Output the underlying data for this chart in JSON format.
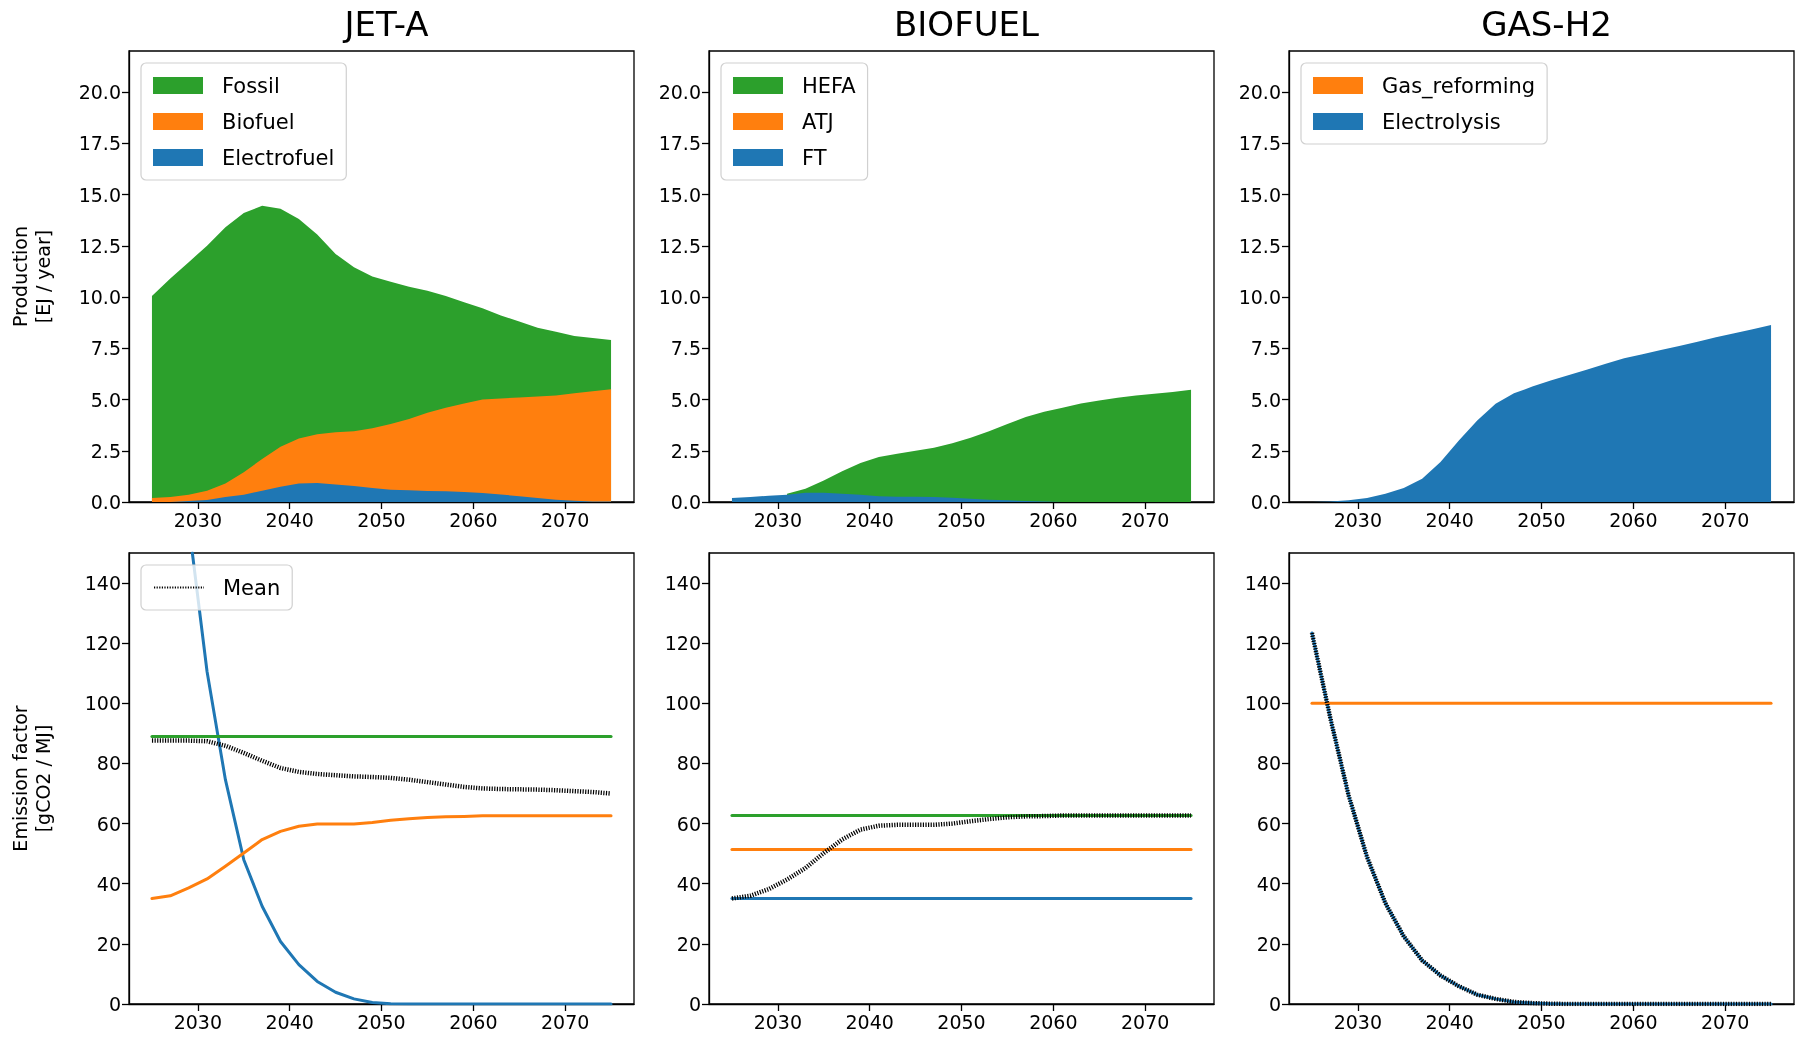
{
  "chart_data": [
    {
      "type": "area",
      "title": "JET-A",
      "ylabel": "Production\n[EJ / year]",
      "stacked": true,
      "legend": "top left",
      "x": [
        2025,
        2027,
        2029,
        2031,
        2033,
        2035,
        2037,
        2039,
        2041,
        2043,
        2045,
        2047,
        2049,
        2051,
        2053,
        2055,
        2057,
        2059,
        2061,
        2063,
        2065,
        2067,
        2069,
        2071,
        2073,
        2075
      ],
      "xlim": [
        2022.5,
        2077.5
      ],
      "xticks": [
        2030,
        2040,
        2050,
        2060,
        2070
      ],
      "ylim": [
        0,
        22
      ],
      "yticks": [
        {
          "value": 0,
          "label": "0.0"
        },
        2.5,
        {
          "value": 5,
          "label": "5.0"
        },
        7.5,
        {
          "value": 10,
          "label": "10.0"
        },
        12.5,
        {
          "value": 15,
          "label": "15.0"
        },
        17.5,
        {
          "value": 20,
          "label": "20.0"
        }
      ],
      "series": [
        {
          "name": "Electrofuel",
          "color": "#1f77b4",
          "values": [
            0,
            0,
            0.05,
            0.1,
            0.25,
            0.35,
            0.55,
            0.75,
            0.9,
            0.93,
            0.85,
            0.78,
            0.68,
            0.6,
            0.57,
            0.54,
            0.52,
            0.49,
            0.44,
            0.37,
            0.28,
            0.2,
            0.11,
            0.06,
            0.03,
            0.02
          ]
        },
        {
          "name": "Biofuel",
          "color": "#ff7f0e",
          "values": [
            0.2,
            0.25,
            0.3,
            0.45,
            0.65,
            1.1,
            1.55,
            1.95,
            2.2,
            2.37,
            2.55,
            2.67,
            2.92,
            3.2,
            3.48,
            3.81,
            4.08,
            4.31,
            4.56,
            4.68,
            4.82,
            4.95,
            5.09,
            5.24,
            5.37,
            5.48
          ]
        },
        {
          "name": "Fossil",
          "color": "#2ca02c",
          "values": [
            9.85,
            10.65,
            11.35,
            11.95,
            12.5,
            12.65,
            12.35,
            11.6,
            10.7,
            9.75,
            8.7,
            8.0,
            7.4,
            6.95,
            6.45,
            5.95,
            5.45,
            4.95,
            4.45,
            4.05,
            3.7,
            3.35,
            3.1,
            2.8,
            2.6,
            2.4
          ]
        }
      ]
    },
    {
      "type": "area",
      "title": "BIOFUEL",
      "stacked": true,
      "legend": "top left",
      "x": [
        2025,
        2027,
        2029,
        2031,
        2033,
        2035,
        2037,
        2039,
        2041,
        2043,
        2045,
        2047,
        2049,
        2051,
        2053,
        2055,
        2057,
        2059,
        2061,
        2063,
        2065,
        2067,
        2069,
        2071,
        2073,
        2075
      ],
      "xlim": [
        2022.5,
        2077.5
      ],
      "xticks": [
        2030,
        2040,
        2050,
        2060,
        2070
      ],
      "ylim": [
        0,
        22
      ],
      "yticks": [
        {
          "value": 0,
          "label": "0.0"
        },
        2.5,
        {
          "value": 5,
          "label": "5.0"
        },
        7.5,
        {
          "value": 10,
          "label": "10.0"
        },
        12.5,
        {
          "value": 15,
          "label": "15.0"
        },
        17.5,
        {
          "value": 20,
          "label": "20.0"
        }
      ],
      "series": [
        {
          "name": "FT",
          "color": "#1f77b4",
          "values": [
            0.2,
            0.25,
            0.3,
            0.35,
            0.45,
            0.45,
            0.4,
            0.35,
            0.28,
            0.26,
            0.26,
            0.25,
            0.21,
            0.16,
            0.11,
            0.08,
            0.05,
            0.02,
            0,
            0,
            0,
            0,
            0,
            0,
            0,
            0
          ]
        },
        {
          "name": "ATJ",
          "color": "#ff7f0e",
          "values": [
            null,
            null,
            null,
            null,
            null,
            null,
            null,
            null,
            null,
            null,
            null,
            null,
            null,
            null,
            null,
            null,
            null,
            null,
            null,
            null,
            null,
            null,
            null,
            null,
            null,
            null
          ]
        },
        {
          "name": "HEFA",
          "color": "#2ca02c",
          "values": [
            null,
            null,
            null,
            0.05,
            0.2,
            0.6,
            1.1,
            1.55,
            1.92,
            2.09,
            2.24,
            2.4,
            2.66,
            2.97,
            3.34,
            3.72,
            4.1,
            4.38,
            4.6,
            4.8,
            4.95,
            5.08,
            5.2,
            5.28,
            5.36,
            5.47
          ]
        }
      ]
    },
    {
      "type": "area",
      "title": "GAS-H2",
      "stacked": true,
      "legend": "top left",
      "x": [
        2025,
        2027,
        2029,
        2031,
        2033,
        2035,
        2037,
        2039,
        2041,
        2043,
        2045,
        2047,
        2049,
        2051,
        2053,
        2055,
        2057,
        2059,
        2061,
        2063,
        2065,
        2067,
        2069,
        2071,
        2073,
        2075
      ],
      "xlim": [
        2022.5,
        2077.5
      ],
      "xticks": [
        2030,
        2040,
        2050,
        2060,
        2070
      ],
      "ylim": [
        0,
        22
      ],
      "yticks": [
        {
          "value": 0,
          "label": "0.0"
        },
        2.5,
        {
          "value": 5,
          "label": "5.0"
        },
        7.5,
        {
          "value": 10,
          "label": "10.0"
        },
        12.5,
        {
          "value": 15,
          "label": "15.0"
        },
        17.5,
        {
          "value": 20,
          "label": "20.0"
        }
      ],
      "series": [
        {
          "name": "Electrolysis",
          "color": "#1f77b4",
          "values": [
            0,
            0.02,
            0.08,
            0.2,
            0.4,
            0.68,
            1.14,
            1.95,
            3.0,
            3.98,
            4.79,
            5.3,
            5.63,
            5.93,
            6.2,
            6.46,
            6.74,
            7.01,
            7.21,
            7.42,
            7.61,
            7.82,
            8.04,
            8.23,
            8.43,
            8.64
          ]
        },
        {
          "name": "Gas_reforming",
          "color": "#ff7f0e",
          "values": [
            null,
            null,
            null,
            null,
            null,
            null,
            null,
            null,
            null,
            null,
            null,
            null,
            null,
            null,
            null,
            null,
            null,
            null,
            null,
            null,
            null,
            null,
            null,
            null,
            null,
            null
          ]
        }
      ]
    },
    {
      "type": "line",
      "ylabel": "Emission factor\n[gCO2 / MJ]",
      "legend": "top left",
      "x": [
        2025,
        2027,
        2029,
        2031,
        2033,
        2035,
        2037,
        2039,
        2041,
        2043,
        2045,
        2047,
        2049,
        2051,
        2053,
        2055,
        2057,
        2059,
        2061,
        2063,
        2065,
        2067,
        2069,
        2071,
        2073,
        2075
      ],
      "xlim": [
        2022.5,
        2077.5
      ],
      "xticks": [
        2030,
        2040,
        2050,
        2060,
        2070
      ],
      "ylim": [
        0,
        150
      ],
      "yticks": [
        0,
        20,
        40,
        60,
        80,
        100,
        120,
        140
      ],
      "series": [
        {
          "color": "#2ca02c",
          "values": [
            89,
            89,
            89,
            89,
            89,
            89,
            89,
            89,
            89,
            89,
            89,
            89,
            89,
            89,
            89,
            89,
            89,
            89,
            89,
            89,
            89,
            89,
            89,
            89,
            89,
            89
          ]
        },
        {
          "color": "#ff7f0e",
          "values": [
            35.1,
            36,
            38.6,
            41.6,
            45.8,
            50.2,
            54.7,
            57.4,
            59.1,
            59.9,
            59.9,
            59.9,
            60.4,
            61.1,
            61.6,
            62,
            62.3,
            62.4,
            62.6,
            62.6,
            62.6,
            62.6,
            62.6,
            62.6,
            62.6,
            62.6
          ]
        },
        {
          "color": "#1f77b4",
          "x": [
            2029.4,
            2031,
            2033,
            2035,
            2037,
            2039,
            2041,
            2043,
            2045,
            2047,
            2049,
            2051,
            2053,
            2055,
            2057,
            2059,
            2061,
            2063,
            2065,
            2067,
            2069,
            2071,
            2073,
            2075
          ],
          "values": [
            150,
            110.6,
            74.6,
            48,
            32.5,
            20.8,
            13.1,
            7.5,
            3.9,
            1.7,
            0.5,
            0.1,
            0,
            0,
            0,
            0,
            0,
            0,
            0,
            0,
            0,
            0,
            0,
            0
          ]
        },
        {
          "name": "Mean",
          "color": "#000000",
          "line_style": "dotted",
          "values": [
            87.6,
            87.6,
            87.6,
            87.4,
            85.9,
            83.5,
            80.9,
            78.5,
            77.2,
            76.5,
            76.1,
            75.7,
            75.5,
            75.2,
            74.6,
            73.8,
            73,
            72.2,
            71.7,
            71.5,
            71.4,
            71.3,
            71.1,
            70.8,
            70.5,
            70
          ]
        }
      ]
    },
    {
      "type": "line",
      "x": [
        2025,
        2027,
        2029,
        2031,
        2033,
        2035,
        2037,
        2039,
        2041,
        2043,
        2045,
        2047,
        2049,
        2051,
        2053,
        2055,
        2057,
        2059,
        2061,
        2063,
        2065,
        2067,
        2069,
        2071,
        2073,
        2075
      ],
      "xlim": [
        2022.5,
        2077.5
      ],
      "xticks": [
        2030,
        2040,
        2050,
        2060,
        2070
      ],
      "ylim": [
        0,
        150
      ],
      "yticks": [
        0,
        20,
        40,
        60,
        80,
        100,
        120,
        140
      ],
      "series": [
        {
          "color": "#2ca02c",
          "values": [
            62.7,
            62.7,
            62.7,
            62.7,
            62.7,
            62.7,
            62.7,
            62.7,
            62.7,
            62.7,
            62.7,
            62.7,
            62.7,
            62.7,
            62.7,
            62.7,
            62.7,
            62.7,
            62.7,
            62.7,
            62.7,
            62.7,
            62.7,
            62.7,
            62.7,
            62.7
          ]
        },
        {
          "color": "#ff7f0e",
          "values": [
            51.4,
            51.4,
            51.4,
            51.4,
            51.4,
            51.4,
            51.4,
            51.4,
            51.4,
            51.4,
            51.4,
            51.4,
            51.4,
            51.4,
            51.4,
            51.4,
            51.4,
            51.4,
            51.4,
            51.4,
            51.4,
            51.4,
            51.4,
            51.4,
            51.4,
            51.4
          ]
        },
        {
          "color": "#1f77b4",
          "values": [
            35.1,
            35.1,
            35.1,
            35.1,
            35.1,
            35.1,
            35.1,
            35.1,
            35.1,
            35.1,
            35.1,
            35.1,
            35.1,
            35.1,
            35.1,
            35.1,
            35.1,
            35.1,
            35.1,
            35.1,
            35.1,
            35.1,
            35.1,
            35.1,
            35.1,
            35.1
          ]
        },
        {
          "color": "#000000",
          "line_style": "dotted",
          "values": [
            35.1,
            36,
            38.2,
            41.4,
            45.2,
            50.2,
            54.7,
            58,
            59.3,
            59.6,
            59.6,
            59.6,
            60,
            60.8,
            61.5,
            62.1,
            62.4,
            62.5,
            62.7,
            62.7,
            62.7,
            62.7,
            62.7,
            62.7,
            62.7,
            62.7
          ]
        }
      ]
    },
    {
      "type": "line",
      "x": [
        2025,
        2027,
        2029,
        2031,
        2033,
        2035,
        2037,
        2039,
        2041,
        2043,
        2045,
        2047,
        2049,
        2051,
        2053,
        2055,
        2057,
        2059,
        2061,
        2063,
        2065,
        2067,
        2069,
        2071,
        2073,
        2075
      ],
      "xlim": [
        2022.5,
        2077.5
      ],
      "xticks": [
        2030,
        2040,
        2050,
        2060,
        2070
      ],
      "ylim": [
        0,
        150
      ],
      "yticks": [
        0,
        20,
        40,
        60,
        80,
        100,
        120,
        140
      ],
      "series": [
        {
          "color": "#ff7f0e",
          "values": [
            100,
            100,
            100,
            100,
            100,
            100,
            100,
            100,
            100,
            100,
            100,
            100,
            100,
            100,
            100,
            100,
            100,
            100,
            100,
            100,
            100,
            100,
            100,
            100,
            100,
            100
          ]
        },
        {
          "color": "#1f77b4",
          "values": [
            123.4,
            95.1,
            69.3,
            48.9,
            33.5,
            22.5,
            14.5,
            9.5,
            5.9,
            3.1,
            1.7,
            0.7,
            0.3,
            0.1,
            0,
            0,
            0,
            0,
            0,
            0,
            0,
            0,
            0,
            0,
            0,
            0
          ]
        },
        {
          "color": "#000000",
          "line_style": "dotted",
          "values": [
            123.4,
            95.1,
            69.3,
            48.9,
            33.5,
            22.5,
            14.5,
            9.5,
            5.9,
            3.1,
            1.7,
            0.7,
            0.3,
            0.1,
            0,
            0,
            0,
            0,
            0,
            0,
            0,
            0,
            0,
            0,
            0,
            0
          ]
        }
      ]
    }
  ]
}
